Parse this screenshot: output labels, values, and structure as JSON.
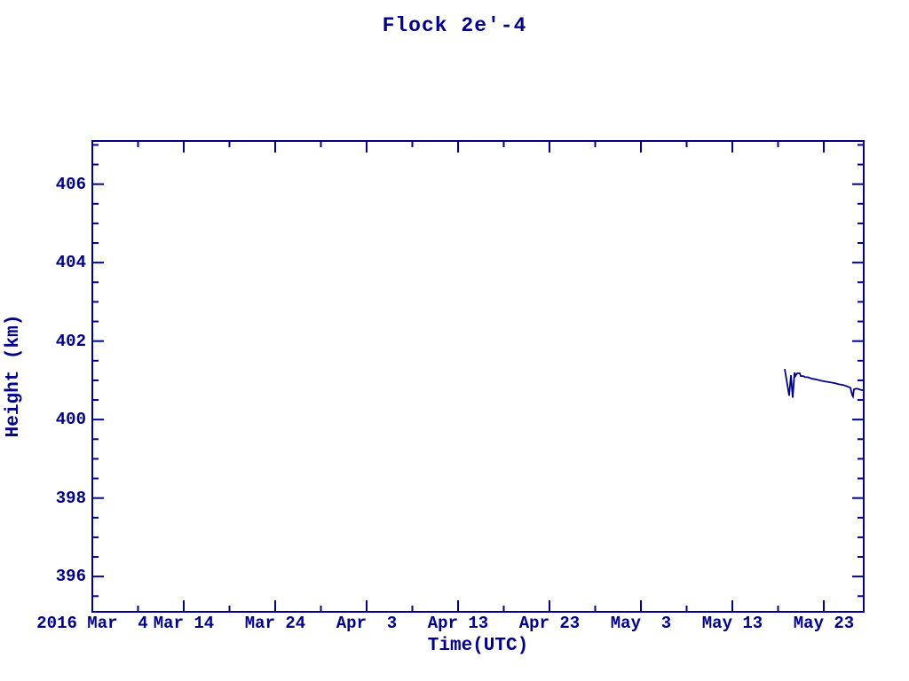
{
  "window": {
    "title": "Flock 2e'-4 height plot"
  },
  "colors": {
    "ink": "#00008B",
    "background": "#FFFFFF"
  },
  "chart_data": {
    "type": "line",
    "title": "Flock 2e'-4",
    "xlabel": "Time(UTC)",
    "ylabel": "Height (km)",
    "x_unit": "days since 2016 Mar 4",
    "xlim": [
      0,
      84.37
    ],
    "ylim": [
      395.1,
      407.1
    ],
    "grid": false,
    "legend": null,
    "x_major_ticks": [
      {
        "t": 0,
        "label": "2016 Mar  4"
      },
      {
        "t": 10,
        "label": "Mar 14"
      },
      {
        "t": 20,
        "label": "Mar 24"
      },
      {
        "t": 30,
        "label": "Apr  3"
      },
      {
        "t": 40,
        "label": "Apr 13"
      },
      {
        "t": 50,
        "label": "Apr 23"
      },
      {
        "t": 60,
        "label": "May  3"
      },
      {
        "t": 70,
        "label": "May 13"
      },
      {
        "t": 80,
        "label": "May 23"
      }
    ],
    "x_minor_step": 5,
    "y_major_ticks": [
      396,
      398,
      400,
      402,
      404,
      406
    ],
    "y_minor_step": 0.5,
    "series": [
      {
        "name": "Flock 2e'-4 height",
        "color": "#00008B",
        "points": [
          [
            75.73,
            401.29
          ],
          [
            76.21,
            400.61
          ],
          [
            76.41,
            401.13
          ],
          [
            76.6,
            400.56
          ],
          [
            76.8,
            401.2
          ],
          [
            76.89,
            401.11
          ],
          [
            77.09,
            401.18
          ],
          [
            77.38,
            401.18
          ],
          [
            77.48,
            401.11
          ],
          [
            77.77,
            401.11
          ],
          [
            77.96,
            401.08
          ],
          [
            78.25,
            401.08
          ],
          [
            78.74,
            401.04
          ],
          [
            79.22,
            401.02
          ],
          [
            79.71,
            400.99
          ],
          [
            80.19,
            400.97
          ],
          [
            80.68,
            400.95
          ],
          [
            81.17,
            400.93
          ],
          [
            81.65,
            400.9
          ],
          [
            82.14,
            400.88
          ],
          [
            82.62,
            400.84
          ],
          [
            82.91,
            400.81
          ],
          [
            83.11,
            400.63
          ],
          [
            83.2,
            400.59
          ],
          [
            83.3,
            400.77
          ],
          [
            83.59,
            400.79
          ],
          [
            83.88,
            400.77
          ],
          [
            84.17,
            400.75
          ],
          [
            84.37,
            400.75
          ]
        ]
      }
    ]
  }
}
